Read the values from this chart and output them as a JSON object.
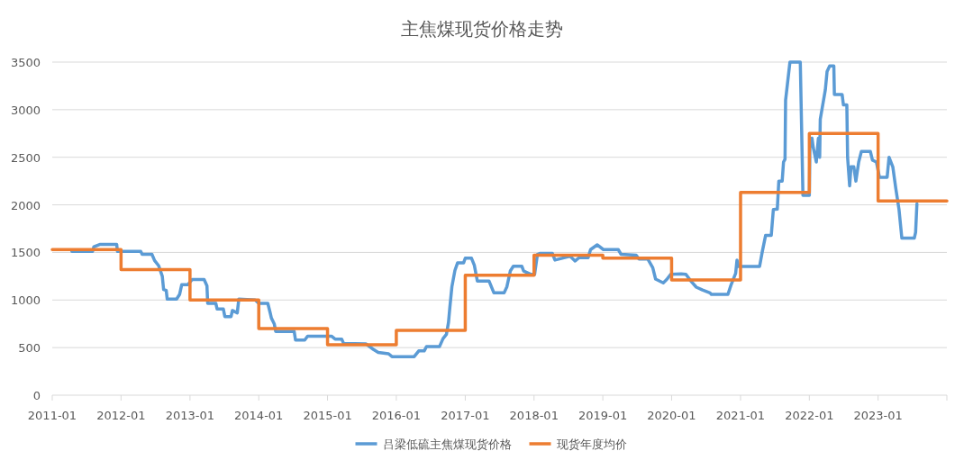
{
  "chart_data": {
    "type": "line",
    "title": "主焦煤现货价格走势",
    "xlim": [
      "2011-01",
      "2024-01"
    ],
    "xticks": [
      {
        "value": "2011-01",
        "label": "2011-01"
      },
      {
        "value": "2012-01",
        "label": "2012-01"
      },
      {
        "value": "2013-01",
        "label": "2013-01"
      },
      {
        "value": "2014-01",
        "label": "2014-01"
      },
      {
        "value": "2015-01",
        "label": "2015-01"
      },
      {
        "value": "2016-01",
        "label": "2016-01"
      },
      {
        "value": "2017-01",
        "label": "2017-01"
      },
      {
        "value": "2018-01",
        "label": "2018-01"
      },
      {
        "value": "2019-01",
        "label": "2019-01"
      },
      {
        "value": "2020-01",
        "label": "2020-01"
      },
      {
        "value": "2021-01",
        "label": "2021-01"
      },
      {
        "value": "2022-01",
        "label": "2022-01"
      },
      {
        "value": "2023-01",
        "label": "2023-01"
      },
      {
        "value": "2024-01",
        "label": null
      }
    ],
    "ylim": [
      0,
      3500
    ],
    "yticks": [
      0,
      500,
      1000,
      1500,
      2000,
      2500,
      3000,
      3500
    ],
    "grid": "y",
    "legend": "bottom",
    "marker": "none",
    "line_style": "solid",
    "series": [
      {
        "name": "吕梁低硫主焦煤现货价格",
        "type": "line",
        "color": "#5b9bd5",
        "x": [
          "2011-04-15",
          "2011-08-03",
          "2011-08-10",
          "2011-09-13",
          "2011-12-09",
          "2011-12-13",
          "2012-04-15",
          "2012-04-22",
          "2012-06-13",
          "2012-06-27",
          "2012-07-19",
          "2012-08-07",
          "2012-08-14",
          "2012-08-28",
          "2012-09-02",
          "2012-10-22",
          "2012-11-07",
          "2012-11-18",
          "2012-12-20",
          "2013-01-12",
          "2013-03-17",
          "2013-04-01",
          "2013-04-05",
          "2013-05-18",
          "2013-05-25",
          "2013-06-27",
          "2013-07-05",
          "2013-08-07",
          "2013-08-14",
          "2013-09-09",
          "2013-09-17",
          "2013-12-13",
          "2014-01-01",
          "2014-02-18",
          "2014-03-02",
          "2014-03-09",
          "2014-03-24",
          "2014-04-01",
          "2014-07-08",
          "2014-07-15",
          "2014-09-02",
          "2014-09-17",
          "2015-01-22",
          "2015-02-10",
          "2015-03-17",
          "2015-03-27",
          "2015-07-23",
          "2015-09-02",
          "2015-09-27",
          "2015-11-21",
          "2015-12-09",
          "2016-04-05",
          "2016-04-29",
          "2016-05-28",
          "2016-06-09",
          "2016-08-17",
          "2016-09-05",
          "2016-09-23",
          "2016-10-04",
          "2016-10-11",
          "2016-10-22",
          "2016-11-07",
          "2016-11-21",
          "2016-12-23",
          "2017-01-01",
          "2017-02-03",
          "2017-02-18",
          "2017-03-06",
          "2017-05-07",
          "2017-06-02",
          "2017-07-26",
          "2017-08-10",
          "2017-08-28",
          "2017-09-13",
          "2017-10-28",
          "2017-11-07",
          "2017-12-16",
          "2018-01-04",
          "2018-01-19",
          "2018-02-03",
          "2018-04-08",
          "2018-04-22",
          "2018-07-12",
          "2018-08-07",
          "2018-08-28",
          "2018-10-15",
          "2018-10-28",
          "2018-12-02",
          "2019-01-04",
          "2019-03-24",
          "2019-04-08",
          "2019-06-27",
          "2019-07-12",
          "2019-08-28",
          "2019-09-23",
          "2019-10-08",
          "2019-11-18",
          "2019-12-06",
          "2019-12-27",
          "2020-02-21",
          "2020-03-17",
          "2020-04-12",
          "2020-05-11",
          "2020-06-13",
          "2020-07-23",
          "2020-07-30",
          "2020-10-26",
          "2020-11-11",
          "2020-12-06",
          "2020-12-13",
          "2020-12-20",
          "2021-04-12",
          "2021-04-26",
          "2021-05-14",
          "2021-06-13",
          "2021-06-24",
          "2021-07-15",
          "2021-07-23",
          "2021-08-10",
          "2021-08-17",
          "2021-08-25",
          "2021-08-28",
          "2021-09-20",
          "2021-11-14",
          "2021-11-21",
          "2021-11-28",
          "2022-01-01",
          "2022-01-04",
          "2022-01-15",
          "2022-01-22",
          "2022-02-07",
          "2022-02-18",
          "2022-02-25",
          "2022-02-28",
          "2022-03-27",
          "2022-04-05",
          "2022-04-19",
          "2022-05-11",
          "2022-05-14",
          "2022-06-24",
          "2022-07-01",
          "2022-07-19",
          "2022-07-23",
          "2022-08-03",
          "2022-08-10",
          "2022-08-25",
          "2022-09-05",
          "2022-09-20",
          "2022-10-04",
          "2022-11-21",
          "2022-12-02",
          "2022-12-23",
          "2023-01-08",
          "2023-02-18",
          "2023-02-28",
          "2023-03-20",
          "2023-04-05",
          "2023-04-22",
          "2023-05-07",
          "2023-07-12",
          "2023-07-19",
          "2023-07-26"
        ],
        "values": [
          1510,
          1510,
          1560,
          1585,
          1585,
          1510,
          1510,
          1480,
          1480,
          1415,
          1360,
          1250,
          1110,
          1100,
          1010,
          1010,
          1060,
          1160,
          1160,
          1215,
          1215,
          1150,
          965,
          965,
          905,
          905,
          826,
          826,
          890,
          865,
          1010,
          1000,
          965,
          965,
          870,
          810,
          750,
          670,
          670,
          580,
          580,
          620,
          620,
          590,
          590,
          545,
          540,
          480,
          450,
          435,
          405,
          405,
          465,
          465,
          510,
          510,
          595,
          640,
          765,
          920,
          1140,
          1310,
          1390,
          1390,
          1440,
          1440,
          1365,
          1200,
          1200,
          1075,
          1075,
          1140,
          1305,
          1355,
          1355,
          1305,
          1270,
          1270,
          1480,
          1490,
          1490,
          1420,
          1460,
          1410,
          1445,
          1445,
          1530,
          1580,
          1530,
          1530,
          1480,
          1470,
          1430,
          1430,
          1340,
          1220,
          1180,
          1215,
          1270,
          1275,
          1270,
          1200,
          1135,
          1105,
          1075,
          1060,
          1060,
          1155,
          1280,
          1420,
          1353,
          1353,
          1505,
          1680,
          1680,
          1950,
          1955,
          2250,
          2250,
          2450,
          2480,
          3100,
          3500,
          3500,
          2810,
          2100,
          2100,
          2600,
          2700,
          2600,
          2450,
          2700,
          2500,
          2900,
          3210,
          3400,
          3460,
          3460,
          3160,
          3160,
          3050,
          3050,
          2500,
          2200,
          2400,
          2400,
          2250,
          2450,
          2560,
          2560,
          2470,
          2450,
          2290,
          2290,
          2500,
          2400,
          2170,
          1950,
          1650,
          1650,
          1710,
          2010
        ]
      },
      {
        "name": "现货年度均价",
        "type": "step",
        "color": "#ed7d31",
        "x": [
          "2011-01",
          "2012-01",
          "2013-01",
          "2014-01",
          "2015-01",
          "2016-01",
          "2017-01",
          "2018-01",
          "2019-01",
          "2020-01",
          "2021-01",
          "2022-01",
          "2023-01",
          "2024-01"
        ],
        "values": [
          1530,
          1320,
          1000,
          700,
          530,
          680,
          1260,
          1470,
          1440,
          1210,
          2130,
          2750,
          2040,
          2040
        ]
      }
    ]
  }
}
